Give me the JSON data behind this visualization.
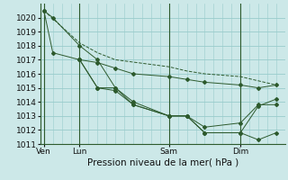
{
  "bg_color": "#cce8e8",
  "grid_color": "#99cccc",
  "line_color": "#2d5a2d",
  "title": "Pression niveau de la mer( hPa )",
  "ylim": [
    1011,
    1021
  ],
  "yticks": [
    1011,
    1012,
    1013,
    1014,
    1015,
    1016,
    1017,
    1018,
    1019,
    1020
  ],
  "xtick_labels": [
    "Ven",
    "Lun",
    "Sam",
    "Dim"
  ],
  "xtick_positions": [
    0,
    2,
    7,
    11
  ],
  "xlim": [
    -0.2,
    13.5
  ],
  "vlines": [
    0,
    2,
    7,
    11
  ],
  "series": [
    {
      "x": [
        0,
        2,
        3,
        4,
        7,
        8,
        9,
        11,
        12,
        13
      ],
      "y": [
        1020.5,
        1018.2,
        1017.5,
        1017.0,
        1016.5,
        1016.2,
        1016.0,
        1015.8,
        1015.5,
        1015.2
      ],
      "linestyle": "--",
      "marker": false
    },
    {
      "x": [
        0,
        0.5,
        2,
        3,
        4,
        5,
        7,
        8,
        9,
        11,
        12,
        13
      ],
      "y": [
        1020.5,
        1020.0,
        1018.0,
        1017.0,
        1015.0,
        1013.8,
        1013.0,
        1013.0,
        1011.8,
        1011.8,
        1011.3,
        1011.8
      ],
      "linestyle": "-",
      "marker": true
    },
    {
      "x": [
        0,
        0.5,
        2,
        3,
        4,
        5,
        7,
        8,
        9,
        11,
        12,
        13
      ],
      "y": [
        1020.5,
        1017.5,
        1017.0,
        1016.8,
        1016.4,
        1016.0,
        1015.8,
        1015.6,
        1015.4,
        1015.2,
        1015.0,
        1015.2
      ],
      "linestyle": "-",
      "marker": true
    },
    {
      "x": [
        2,
        3,
        4,
        5,
        7,
        8,
        9,
        11,
        12,
        13
      ],
      "y": [
        1017.0,
        1015.0,
        1014.8,
        1013.8,
        1013.0,
        1013.0,
        1011.8,
        1011.8,
        1013.7,
        1014.2
      ],
      "linestyle": "-",
      "marker": true
    },
    {
      "x": [
        2,
        3,
        4,
        5,
        7,
        8,
        9,
        11,
        12,
        13
      ],
      "y": [
        1017.0,
        1015.0,
        1015.0,
        1014.0,
        1013.0,
        1013.0,
        1012.2,
        1012.5,
        1013.8,
        1013.8
      ],
      "linestyle": "-",
      "marker": true
    }
  ]
}
